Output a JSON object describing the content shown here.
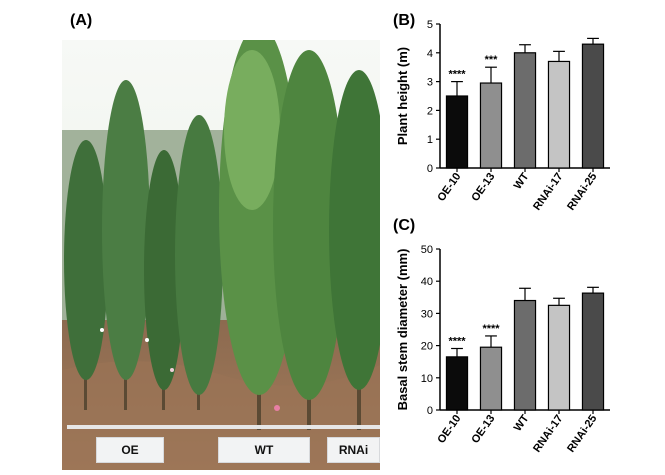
{
  "panels": {
    "a_label": "(A)",
    "b_label": "(B)",
    "c_label": "(C)"
  },
  "photo": {
    "groups": [
      "OE",
      "WT",
      "RNAi"
    ]
  },
  "colors": {
    "OE-10": "#0b0b0b",
    "OE-13": "#8f8f8f",
    "WT": "#6c6c6c",
    "RNAi-17": "#c4c4c4",
    "RNAi-25": "#4a4a4a"
  },
  "chart_data": [
    {
      "type": "bar",
      "panel": "B",
      "categories": [
        "OE-10",
        "OE-13",
        "WT",
        "RNAi-17",
        "RNAi-25"
      ],
      "values": [
        2.5,
        2.95,
        4.0,
        3.7,
        4.3
      ],
      "errors": [
        0.5,
        0.55,
        0.28,
        0.35,
        0.2
      ],
      "significance": [
        "****",
        "***",
        "",
        "",
        ""
      ],
      "ylabel": "Plant height (m)",
      "ylim": [
        0,
        5
      ],
      "yticks": [
        0,
        1,
        2,
        3,
        4,
        5
      ],
      "grid": false
    },
    {
      "type": "bar",
      "panel": "C",
      "categories": [
        "OE-10",
        "OE-13",
        "WT",
        "RNAi-17",
        "RNAi-25"
      ],
      "values": [
        16.5,
        19.5,
        34.0,
        32.5,
        36.3
      ],
      "errors": [
        2.6,
        3.5,
        3.8,
        2.2,
        1.8
      ],
      "significance": [
        "****",
        "****",
        "",
        "",
        ""
      ],
      "ylabel": "Basal stem diameter (mm)",
      "ylim": [
        0,
        50
      ],
      "yticks": [
        0,
        10,
        20,
        30,
        40,
        50
      ],
      "grid": false
    }
  ]
}
